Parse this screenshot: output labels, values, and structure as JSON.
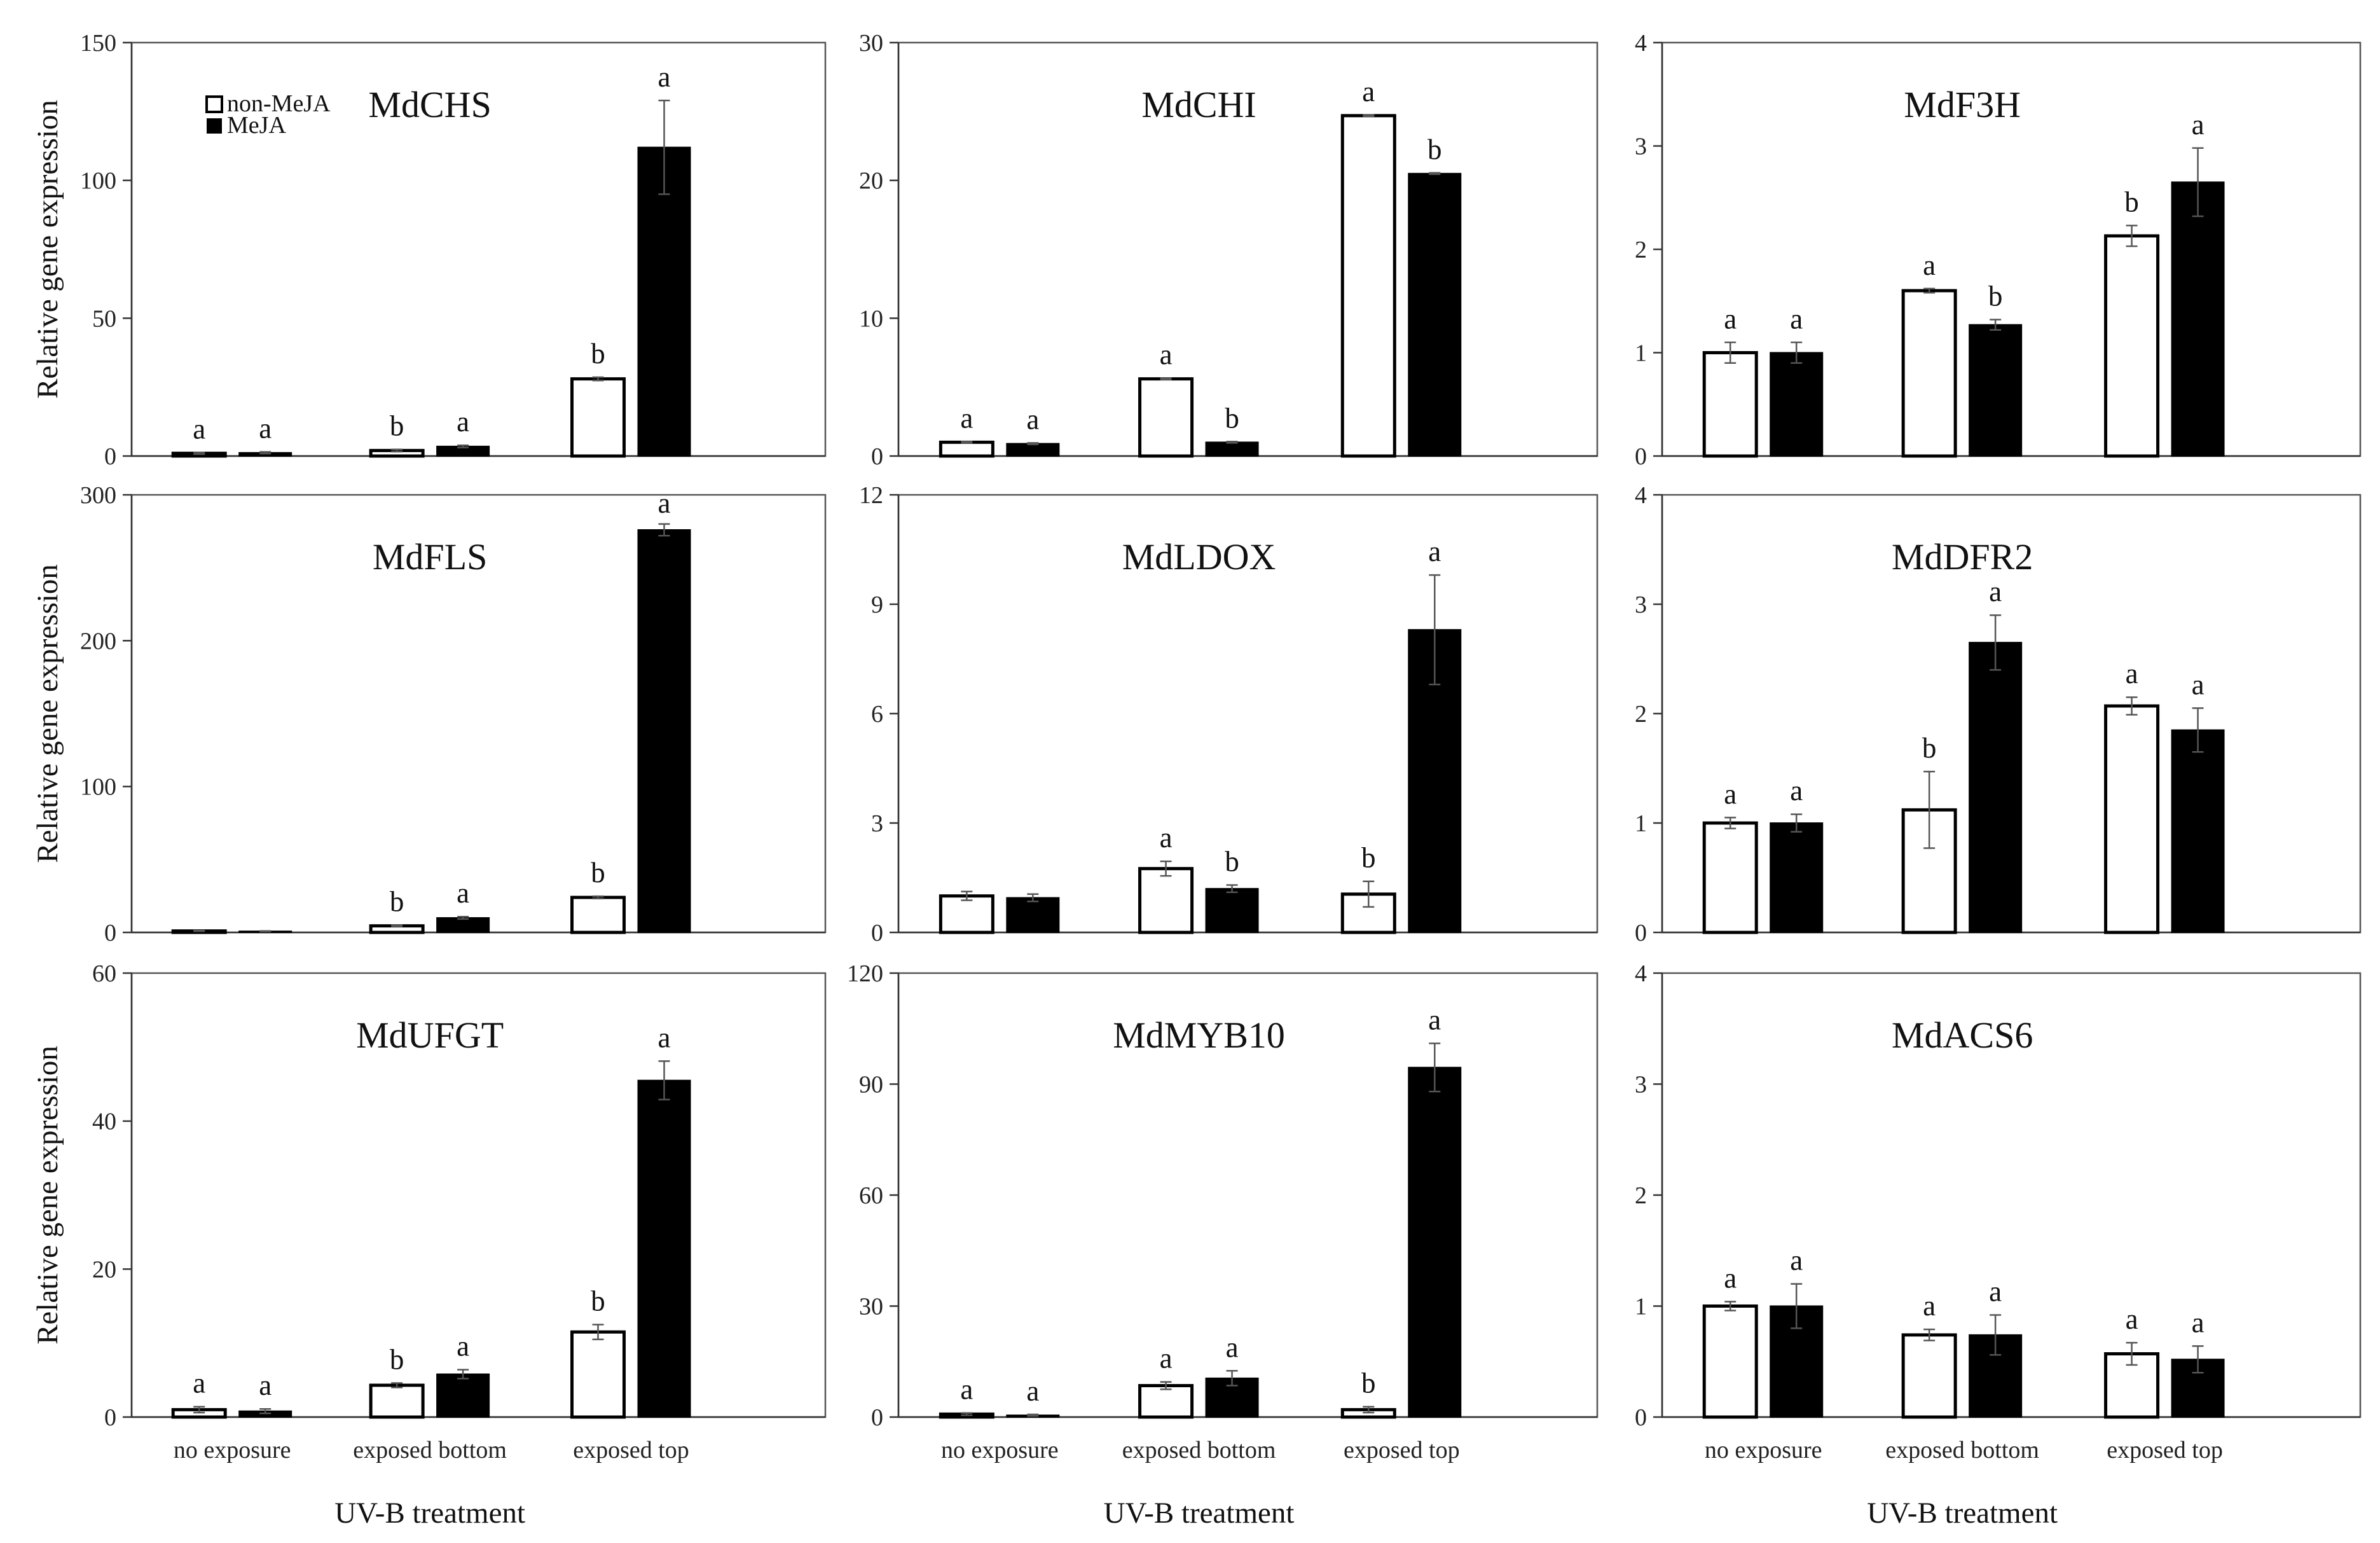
{
  "chart_data": [
    {
      "type": "bar",
      "title": "MdCHS",
      "ylabel": "Relative gene expression",
      "xlabel": "",
      "ylim": [
        0,
        150
      ],
      "yticks": [
        0,
        50,
        100,
        150
      ],
      "categories": [
        "no exposure",
        "exposed bottom",
        "exposed top"
      ],
      "series": [
        {
          "name": "non-MeJA",
          "values": [
            1,
            2,
            28
          ],
          "errors": [
            0.3,
            0.4,
            0.6
          ],
          "labels": [
            "a",
            "b",
            "b"
          ]
        },
        {
          "name": "MeJA",
          "values": [
            1.2,
            3.5,
            112
          ],
          "errors": [
            0.3,
            0.4,
            17
          ],
          "labels": [
            "a",
            "a",
            "a"
          ]
        }
      ],
      "legend": [
        "non-MeJA",
        "MeJA"
      ]
    },
    {
      "type": "bar",
      "title": "MdCHI",
      "ylabel": "",
      "xlabel": "",
      "ylim": [
        0,
        30
      ],
      "yticks": [
        0,
        10,
        20,
        30
      ],
      "categories": [
        "no exposure",
        "exposed bottom",
        "exposed top"
      ],
      "series": [
        {
          "name": "non-MeJA",
          "values": [
            1,
            5.6,
            24.7
          ],
          "errors": [
            0.05,
            0.05,
            0.05
          ],
          "labels": [
            "a",
            "a",
            "a"
          ]
        },
        {
          "name": "MeJA",
          "values": [
            0.9,
            1.0,
            20.5
          ],
          "errors": [
            0.05,
            0.05,
            0.05
          ],
          "labels": [
            "a",
            "b",
            "b"
          ]
        }
      ]
    },
    {
      "type": "bar",
      "title": "MdF3H",
      "ylabel": "",
      "xlabel": "",
      "ylim": [
        0,
        4
      ],
      "yticks": [
        0,
        1,
        2,
        3,
        4
      ],
      "categories": [
        "no exposure",
        "exposed bottom",
        "exposed top"
      ],
      "series": [
        {
          "name": "non-MeJA",
          "values": [
            1,
            1.6,
            2.13
          ],
          "errors": [
            0.1,
            0.02,
            0.1
          ],
          "labels": [
            "a",
            "a",
            "b"
          ]
        },
        {
          "name": "MeJA",
          "values": [
            1,
            1.27,
            2.65
          ],
          "errors": [
            0.1,
            0.05,
            0.33
          ],
          "labels": [
            "a",
            "b",
            "a"
          ]
        }
      ]
    },
    {
      "type": "bar",
      "title": "MdFLS",
      "ylabel": "Relative gene expression",
      "xlabel": "",
      "ylim": [
        0,
        300
      ],
      "yticks": [
        0,
        100,
        200,
        300
      ],
      "categories": [
        "no exposure",
        "exposed bottom",
        "exposed top"
      ],
      "series": [
        {
          "name": "non-MeJA",
          "values": [
            1,
            4.5,
            24
          ],
          "errors": [
            0.2,
            0.5,
            0.8
          ],
          "labels": [
            "",
            "b",
            "b"
          ]
        },
        {
          "name": "MeJA",
          "values": [
            0.8,
            10,
            276
          ],
          "errors": [
            0.2,
            0.8,
            4
          ],
          "labels": [
            "",
            "a",
            "a"
          ]
        }
      ]
    },
    {
      "type": "bar",
      "title": "MdLDOX",
      "ylabel": "",
      "xlabel": "",
      "ylim": [
        0,
        12
      ],
      "yticks": [
        0,
        3,
        6,
        9,
        12
      ],
      "categories": [
        "no exposure",
        "exposed bottom",
        "exposed top"
      ],
      "series": [
        {
          "name": "non-MeJA",
          "values": [
            1,
            1.75,
            1.05
          ],
          "errors": [
            0.12,
            0.2,
            0.35
          ],
          "labels": [
            "",
            "a",
            "b"
          ]
        },
        {
          "name": "MeJA",
          "values": [
            0.95,
            1.2,
            8.3
          ],
          "errors": [
            0.1,
            0.1,
            1.5
          ],
          "labels": [
            "",
            "b",
            "a"
          ]
        }
      ]
    },
    {
      "type": "bar",
      "title": "MdDFR2",
      "ylabel": "",
      "xlabel": "",
      "ylim": [
        0,
        4
      ],
      "yticks": [
        0,
        1,
        2,
        3,
        4
      ],
      "categories": [
        "no exposure",
        "exposed bottom",
        "exposed top"
      ],
      "series": [
        {
          "name": "non-MeJA",
          "values": [
            1,
            1.12,
            2.07
          ],
          "errors": [
            0.05,
            0.35,
            0.08
          ],
          "labels": [
            "a",
            "b",
            "a"
          ]
        },
        {
          "name": "MeJA",
          "values": [
            1,
            2.65,
            1.85
          ],
          "errors": [
            0.08,
            0.25,
            0.2
          ],
          "labels": [
            "a",
            "a",
            "a"
          ]
        }
      ]
    },
    {
      "type": "bar",
      "title": "MdUFGT",
      "ylabel": "Relative gene expression",
      "xlabel": "UV-B treatment",
      "ylim": [
        0,
        60
      ],
      "yticks": [
        0,
        20,
        40,
        60
      ],
      "categories": [
        "no exposure",
        "exposed bottom",
        "exposed top"
      ],
      "series": [
        {
          "name": "non-MeJA",
          "values": [
            1,
            4.3,
            11.5
          ],
          "errors": [
            0.4,
            0.3,
            1.0
          ],
          "labels": [
            "a",
            "b",
            "b"
          ]
        },
        {
          "name": "MeJA",
          "values": [
            0.8,
            5.8,
            45.5
          ],
          "errors": [
            0.3,
            0.6,
            2.6
          ],
          "labels": [
            "a",
            "a",
            "a"
          ]
        }
      ]
    },
    {
      "type": "bar",
      "title": "MdMYB10",
      "ylabel": "",
      "xlabel": "UV-B treatment",
      "ylim": [
        0,
        120
      ],
      "yticks": [
        0,
        30,
        60,
        90,
        120
      ],
      "categories": [
        "no exposure",
        "exposed bottom",
        "exposed top"
      ],
      "series": [
        {
          "name": "non-MeJA",
          "values": [
            0.8,
            8.5,
            2
          ],
          "errors": [
            0.3,
            1,
            0.8
          ],
          "labels": [
            "a",
            "a",
            "b"
          ]
        },
        {
          "name": "MeJA",
          "values": [
            0.5,
            10.5,
            94.5
          ],
          "errors": [
            0.2,
            2,
            6.5
          ],
          "labels": [
            "a",
            "a",
            "a"
          ]
        }
      ]
    },
    {
      "type": "bar",
      "title": "MdACS6",
      "ylabel": "",
      "xlabel": "UV-B treatment",
      "ylim": [
        0,
        4
      ],
      "yticks": [
        0,
        1,
        2,
        3,
        4
      ],
      "categories": [
        "no exposure",
        "exposed bottom",
        "exposed top"
      ],
      "series": [
        {
          "name": "non-MeJA",
          "values": [
            1,
            0.74,
            0.57
          ],
          "errors": [
            0.04,
            0.05,
            0.1
          ],
          "labels": [
            "a",
            "a",
            "a"
          ]
        },
        {
          "name": "MeJA",
          "values": [
            1,
            0.74,
            0.52
          ],
          "errors": [
            0.2,
            0.18,
            0.12
          ],
          "labels": [
            "a",
            "a",
            "a"
          ]
        }
      ]
    }
  ]
}
